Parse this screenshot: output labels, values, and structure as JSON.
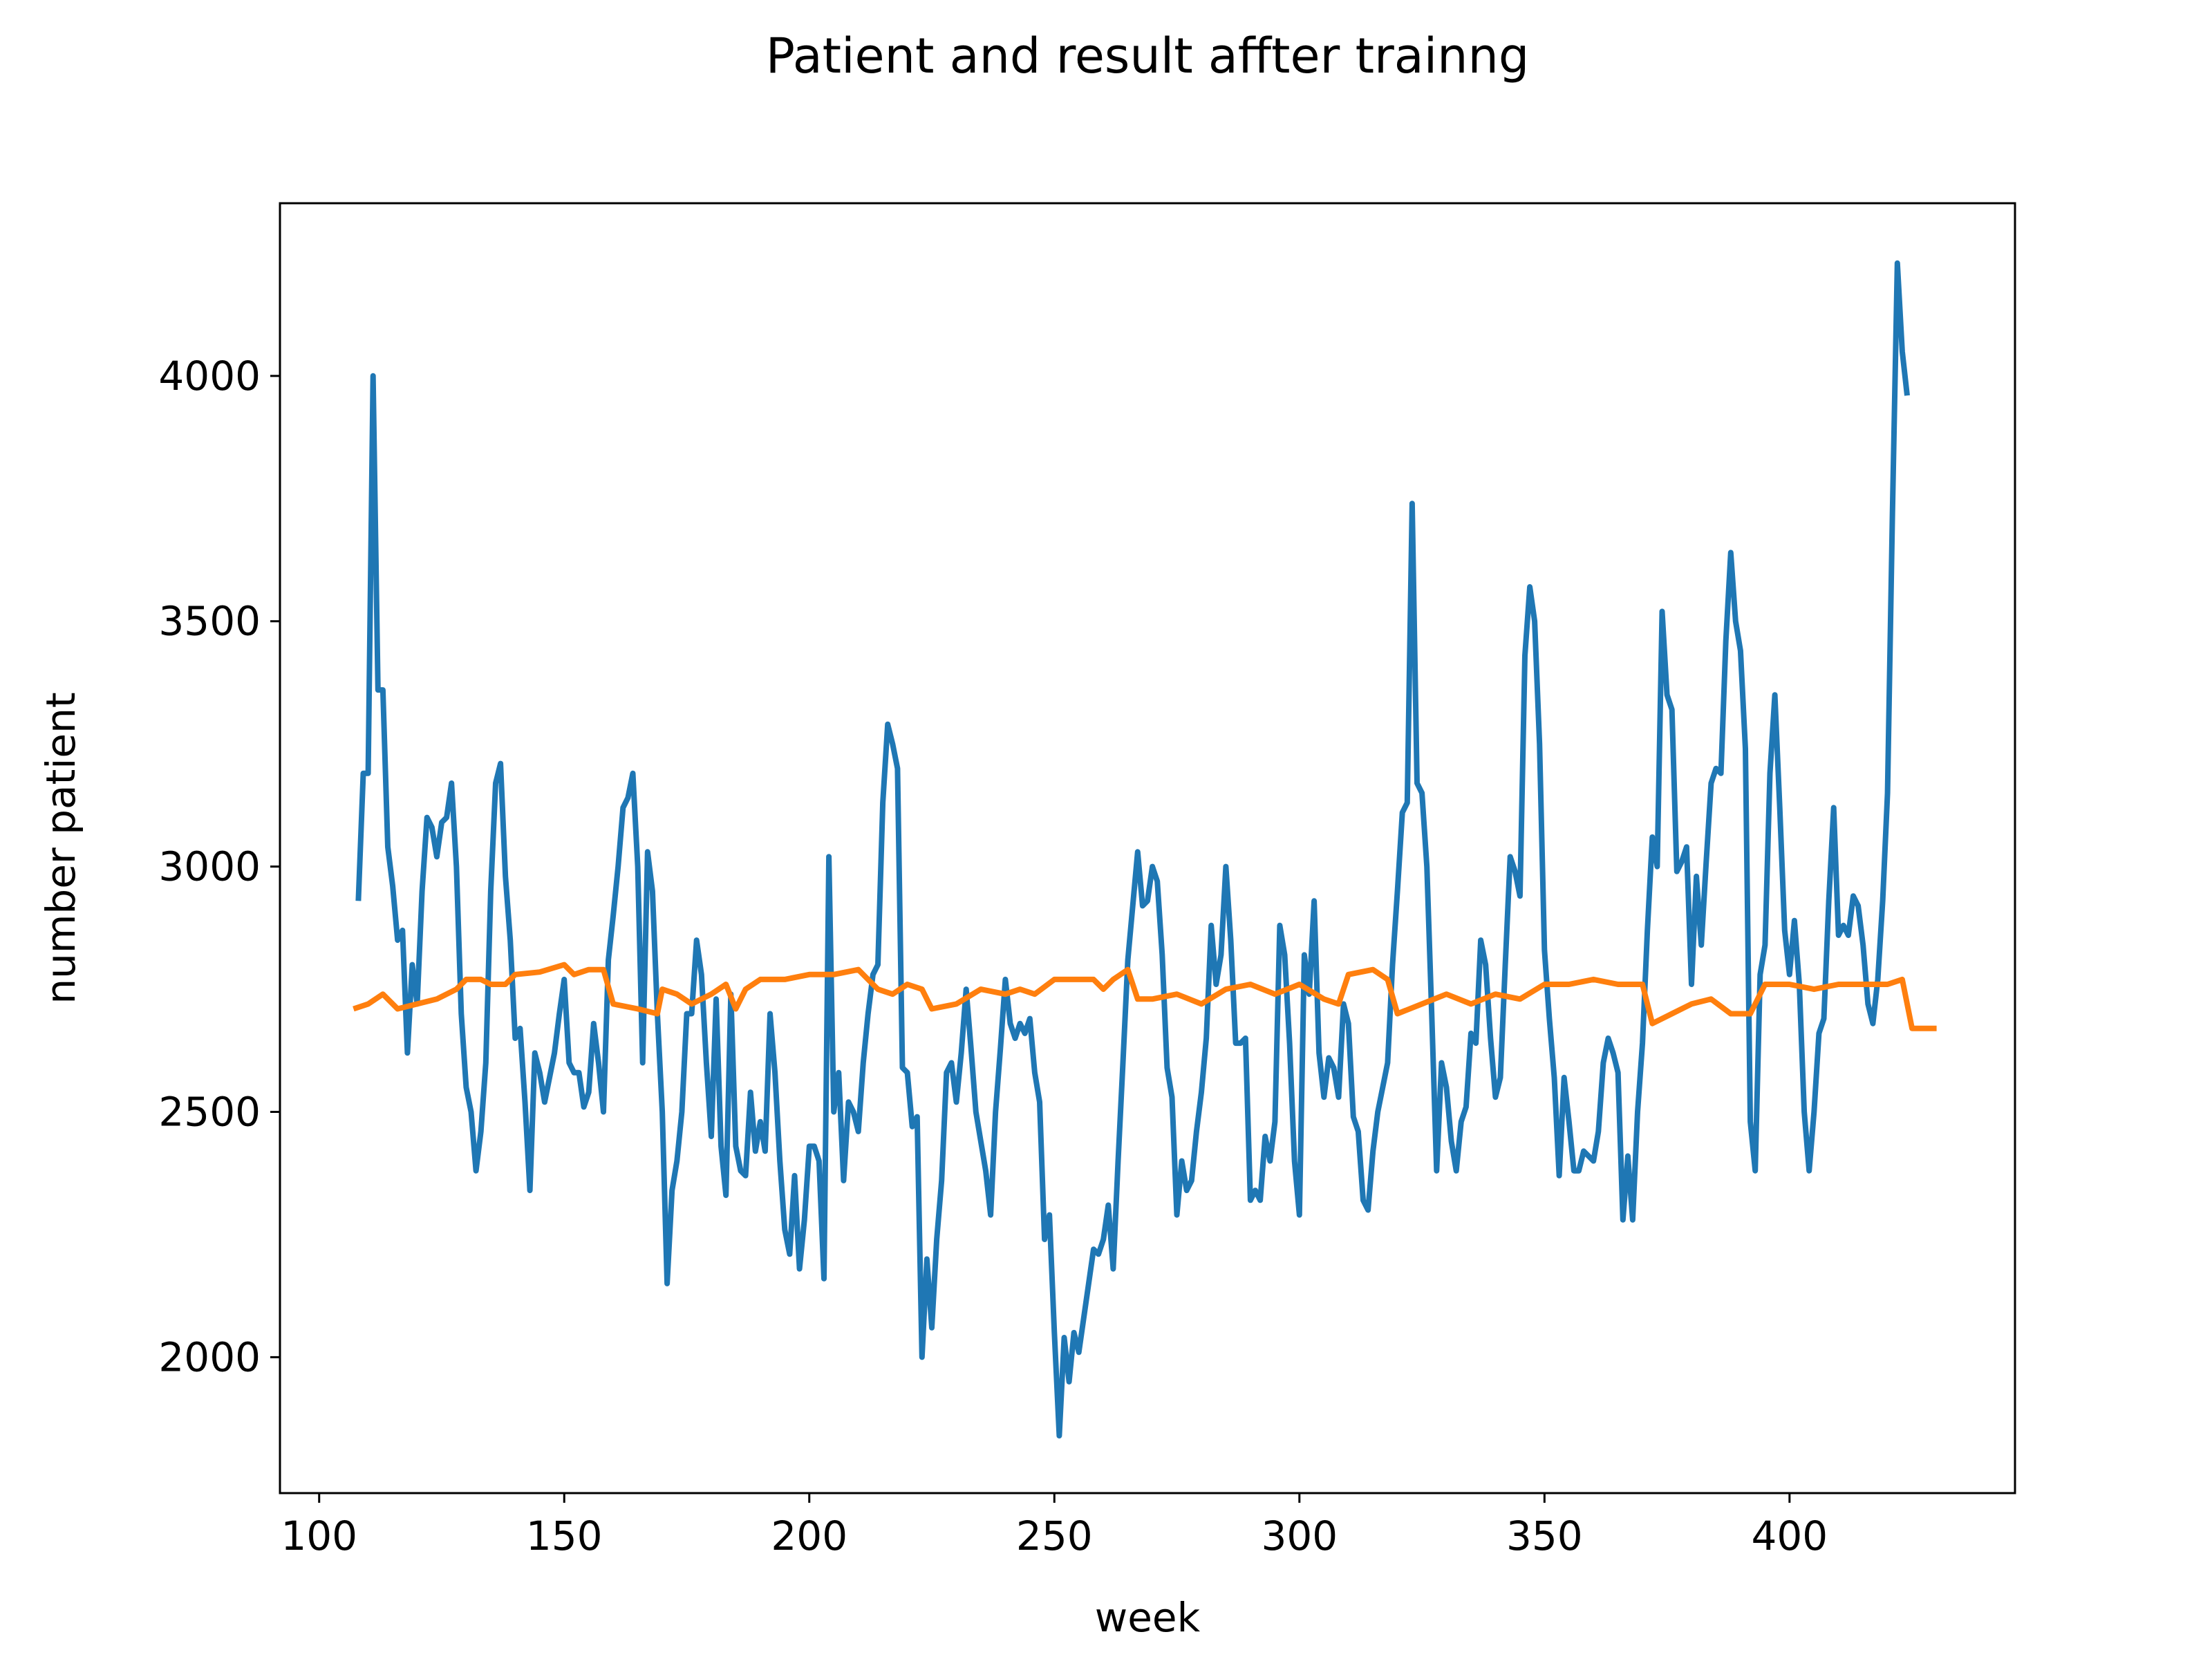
{
  "chart_data": {
    "type": "line",
    "title": "Patient and result affter trainng",
    "xlabel": "week",
    "ylabel": "number patient",
    "xlim": [
      92,
      446
    ],
    "ylim": [
      1723,
      4352
    ],
    "xticks": [
      100,
      150,
      200,
      250,
      300,
      350,
      400
    ],
    "yticks": [
      2000,
      2500,
      3000,
      3500,
      4000
    ],
    "series": [
      {
        "color": "#1f77b4",
        "x": [
          108,
          109,
          110,
          111,
          112,
          113,
          114,
          115,
          116,
          117,
          118,
          119,
          120,
          121,
          122,
          123,
          124,
          125,
          126,
          127,
          128,
          129,
          130,
          131,
          132,
          133,
          134,
          135,
          136,
          137,
          138,
          139,
          140,
          141,
          142,
          143,
          144,
          145,
          146,
          147,
          148,
          149,
          150,
          151,
          152,
          153,
          154,
          155,
          156,
          157,
          158,
          159,
          160,
          161,
          162,
          163,
          164,
          165,
          166,
          167,
          168,
          169,
          170,
          171,
          172,
          173,
          174,
          175,
          176,
          177,
          178,
          179,
          180,
          181,
          182,
          183,
          184,
          185,
          186,
          187,
          188,
          189,
          190,
          191,
          192,
          193,
          194,
          195,
          196,
          197,
          198,
          199,
          200,
          201,
          202,
          203,
          204,
          205,
          206,
          207,
          208,
          209,
          210,
          211,
          212,
          213,
          214,
          215,
          216,
          217,
          218,
          219,
          220,
          221,
          222,
          223,
          224,
          225,
          226,
          227,
          228,
          229,
          230,
          231,
          232,
          233,
          234,
          235,
          236,
          237,
          238,
          239,
          240,
          241,
          242,
          243,
          244,
          245,
          246,
          247,
          248,
          249,
          250,
          251,
          252,
          253,
          254,
          255,
          256,
          257,
          258,
          259,
          260,
          261,
          262,
          263,
          264,
          265,
          266,
          267,
          268,
          269,
          270,
          271,
          272,
          273,
          274,
          275,
          276,
          277,
          278,
          279,
          280,
          281,
          282,
          283,
          284,
          285,
          286,
          287,
          288,
          289,
          290,
          291,
          292,
          293,
          294,
          295,
          296,
          297,
          298,
          299,
          300,
          301,
          302,
          303,
          304,
          305,
          306,
          307,
          308,
          309,
          310,
          311,
          312,
          313,
          314,
          315,
          316,
          317,
          318,
          319,
          320,
          321,
          322,
          323,
          324,
          325,
          326,
          327,
          328,
          329,
          330,
          331,
          332,
          333,
          334,
          335,
          336,
          337,
          338,
          339,
          340,
          341,
          342,
          343,
          344,
          345,
          346,
          347,
          348,
          349,
          350,
          351,
          352,
          353,
          354,
          355,
          356,
          357,
          358,
          359,
          360,
          361,
          362,
          363,
          364,
          365,
          366,
          367,
          368,
          369,
          370,
          371,
          372,
          373,
          374,
          375,
          376,
          377,
          378,
          379,
          380,
          381,
          382,
          383,
          384,
          385,
          386,
          387,
          388,
          389,
          390,
          391,
          392,
          393,
          394,
          395,
          396,
          397,
          398,
          399,
          400,
          401,
          402,
          403,
          404,
          405,
          406,
          407,
          408,
          409,
          410,
          411,
          412,
          413,
          414,
          415,
          416,
          417,
          418,
          419,
          420,
          421,
          422,
          423,
          424
        ],
        "values": [
          2930,
          3190,
          3190,
          4000,
          3360,
          3360,
          3040,
          2960,
          2850,
          2870,
          2620,
          2800,
          2720,
          2950,
          3100,
          3080,
          3020,
          3090,
          3100,
          3170,
          3000,
          2700,
          2550,
          2500,
          2380,
          2460,
          2600,
          2950,
          3170,
          3210,
          2980,
          2850,
          2650,
          2670,
          2520,
          2340,
          2620,
          2580,
          2520,
          2570,
          2620,
          2700,
          2770,
          2600,
          2580,
          2580,
          2510,
          2540,
          2680,
          2600,
          2500,
          2810,
          2900,
          3000,
          3120,
          3140,
          3190,
          3000,
          2600,
          3030,
          2950,
          2700,
          2500,
          2150,
          2340,
          2400,
          2500,
          2700,
          2700,
          2850,
          2780,
          2600,
          2450,
          2730,
          2430,
          2330,
          2740,
          2430,
          2380,
          2370,
          2540,
          2420,
          2480,
          2420,
          2700,
          2580,
          2400,
          2260,
          2210,
          2370,
          2180,
          2280,
          2430,
          2430,
          2400,
          2160,
          3020,
          2500,
          2580,
          2360,
          2520,
          2500,
          2460,
          2600,
          2700,
          2780,
          2800,
          3130,
          3290,
          3250,
          3200,
          2590,
          2580,
          2470,
          2490,
          2000,
          2200,
          2060,
          2240,
          2360,
          2580,
          2600,
          2520,
          2620,
          2750,
          2630,
          2500,
          2440,
          2380,
          2290,
          2500,
          2630,
          2770,
          2680,
          2650,
          2680,
          2660,
          2690,
          2580,
          2520,
          2240,
          2290,
          2050,
          1840,
          2040,
          1950,
          2050,
          2010,
          2080,
          2150,
          2220,
          2210,
          2240,
          2310,
          2180,
          2400,
          2600,
          2810,
          2920,
          3030,
          2920,
          2930,
          3000,
          2970,
          2820,
          2590,
          2530,
          2290,
          2400,
          2340,
          2360,
          2460,
          2540,
          2650,
          2880,
          2760,
          2820,
          3000,
          2850,
          2640,
          2640,
          2650,
          2320,
          2340,
          2320,
          2450,
          2400,
          2480,
          2880,
          2820,
          2640,
          2400,
          2290,
          2820,
          2740,
          2930,
          2620,
          2530,
          2610,
          2590,
          2530,
          2720,
          2680,
          2490,
          2460,
          2320,
          2300,
          2420,
          2500,
          2550,
          2600,
          2800,
          2950,
          3110,
          3130,
          3740,
          3170,
          3150,
          3000,
          2700,
          2380,
          2600,
          2550,
          2440,
          2380,
          2480,
          2510,
          2660,
          2640,
          2850,
          2800,
          2650,
          2530,
          2570,
          2800,
          3020,
          2990,
          2940,
          3430,
          3570,
          3500,
          3250,
          2830,
          2690,
          2570,
          2370,
          2570,
          2480,
          2380,
          2380,
          2420,
          2410,
          2400,
          2460,
          2600,
          2650,
          2620,
          2580,
          2280,
          2410,
          2280,
          2500,
          2640,
          2870,
          3060,
          3000,
          3520,
          3350,
          3320,
          2990,
          3010,
          3040,
          2760,
          2980,
          2840,
          3010,
          3170,
          3200,
          3190,
          3460,
          3640,
          3500,
          3440,
          3240,
          2480,
          2380,
          2780,
          2840,
          3190,
          3350,
          3120,
          2870,
          2780,
          2890,
          2760,
          2500,
          2380,
          2500,
          2660,
          2690,
          2930,
          3120,
          2860,
          2880,
          2860,
          2940,
          2920,
          2840,
          2720,
          2680,
          2770,
          2930,
          3150,
          3720,
          4230,
          4050,
          3960
        ]
      },
      {
        "color": "#ff7f0e",
        "x": [
          107,
          110,
          113,
          116,
          120,
          124,
          128,
          130,
          133,
          135,
          138,
          140,
          145,
          150,
          152,
          155,
          158,
          160,
          165,
          169,
          170,
          173,
          176,
          180,
          183,
          185,
          187,
          190,
          195,
          200,
          205,
          210,
          212,
          214,
          217,
          220,
          223,
          225,
          230,
          235,
          240,
          243,
          246,
          250,
          255,
          258,
          260,
          262,
          265,
          267,
          270,
          275,
          280,
          285,
          290,
          295,
          300,
          305,
          308,
          310,
          315,
          318,
          320,
          325,
          330,
          335,
          340,
          345,
          350,
          355,
          360,
          365,
          370,
          372,
          376,
          380,
          384,
          388,
          392,
          395,
          400,
          405,
          410,
          415,
          420,
          423,
          425,
          430
        ],
        "values": [
          2710,
          2720,
          2740,
          2710,
          2720,
          2730,
          2750,
          2770,
          2770,
          2760,
          2760,
          2780,
          2785,
          2800,
          2780,
          2790,
          2790,
          2720,
          2710,
          2700,
          2750,
          2740,
          2720,
          2740,
          2760,
          2710,
          2750,
          2770,
          2770,
          2780,
          2780,
          2790,
          2770,
          2750,
          2740,
          2760,
          2750,
          2710,
          2720,
          2750,
          2740,
          2750,
          2740,
          2770,
          2770,
          2770,
          2750,
          2770,
          2790,
          2730,
          2730,
          2740,
          2720,
          2750,
          2760,
          2740,
          2760,
          2730,
          2720,
          2780,
          2790,
          2770,
          2700,
          2720,
          2740,
          2720,
          2740,
          2730,
          2760,
          2760,
          2770,
          2760,
          2760,
          2680,
          2700,
          2720,
          2730,
          2700,
          2700,
          2760,
          2760,
          2750,
          2760,
          2760,
          2760,
          2770,
          2670,
          2670
        ]
      }
    ]
  }
}
